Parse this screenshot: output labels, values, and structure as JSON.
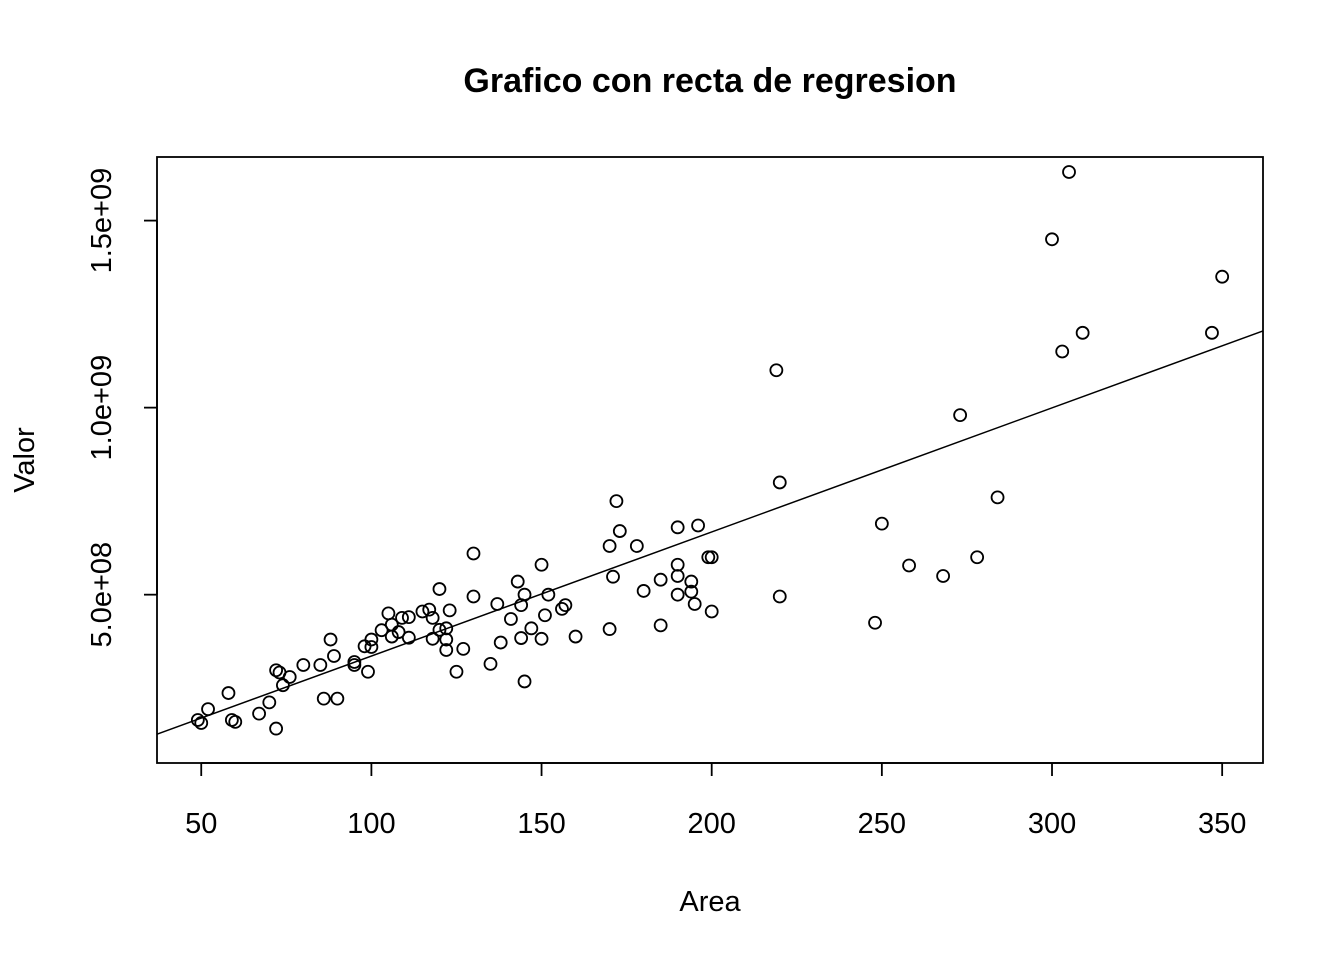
{
  "chart_data": {
    "type": "scatter",
    "title": "Grafico con recta de regresion",
    "xlabel": "Area",
    "ylabel": "Valor",
    "xlim": [
      37,
      362
    ],
    "ylim": [
      50000000.0,
      1670000000.0
    ],
    "x_ticks": [
      50,
      100,
      150,
      200,
      250,
      300,
      350
    ],
    "x_tick_labels": [
      "50",
      "100",
      "150",
      "200",
      "250",
      "300",
      "350"
    ],
    "y_ticks": [
      500000000,
      1000000000,
      1500000000
    ],
    "y_tick_labels": [
      "5.0e+08",
      "1.0e+09",
      "1.5e+09"
    ],
    "grid": false,
    "regression_line": {
      "x": [
        37,
        362
      ],
      "y": [
        127000000.0,
        1205000000.0
      ]
    },
    "series": [
      {
        "points": [
          [
            49,
            165000000.0
          ],
          [
            50,
            157000000.0
          ],
          [
            52,
            194000000.0
          ],
          [
            58,
            237000000.0
          ],
          [
            59,
            165000000.0
          ],
          [
            60,
            160000000.0
          ],
          [
            67,
            182000000.0
          ],
          [
            70,
            212000000.0
          ],
          [
            72,
            298000000.0
          ],
          [
            72,
            142000000.0
          ],
          [
            73,
            292000000.0
          ],
          [
            74,
            258000000.0
          ],
          [
            76,
            280000000.0
          ],
          [
            80,
            312000000.0
          ],
          [
            85,
            312000000.0
          ],
          [
            86,
            222000000.0
          ],
          [
            88,
            380000000.0
          ],
          [
            89,
            336000000.0
          ],
          [
            90,
            222000000.0
          ],
          [
            95,
            320000000.0
          ],
          [
            95,
            312000000.0
          ],
          [
            98,
            362000000.0
          ],
          [
            99,
            294000000.0
          ],
          [
            100,
            380000000.0
          ],
          [
            100,
            360000000.0
          ],
          [
            103,
            405000000.0
          ],
          [
            105,
            450000000.0
          ],
          [
            106,
            420000000.0
          ],
          [
            106,
            388000000.0
          ],
          [
            108,
            400000000.0
          ],
          [
            109,
            438000000.0
          ],
          [
            111,
            440000000.0
          ],
          [
            111,
            385000000.0
          ],
          [
            115,
            455000000.0
          ],
          [
            117,
            460000000.0
          ],
          [
            118,
            438000000.0
          ],
          [
            118,
            382000000.0
          ],
          [
            120,
            515000000.0
          ],
          [
            120,
            406000000.0
          ],
          [
            122,
            410000000.0
          ],
          [
            122,
            380000000.0
          ],
          [
            122,
            352000000.0
          ],
          [
            123,
            458000000.0
          ],
          [
            125,
            294000000.0
          ],
          [
            127,
            355000000.0
          ],
          [
            130,
            610000000.0
          ],
          [
            130,
            495000000.0
          ],
          [
            135,
            315000000.0
          ],
          [
            137,
            475000000.0
          ],
          [
            138,
            372000000.0
          ],
          [
            141,
            435000000.0
          ],
          [
            143,
            535000000.0
          ],
          [
            144,
            472000000.0
          ],
          [
            144,
            384000000.0
          ],
          [
            145,
            500000000.0
          ],
          [
            145,
            268000000.0
          ],
          [
            147,
            410000000.0
          ],
          [
            150,
            580000000.0
          ],
          [
            150,
            382000000.0
          ],
          [
            151,
            445000000.0
          ],
          [
            152,
            500000000.0
          ],
          [
            156,
            462000000.0
          ],
          [
            157,
            472000000.0
          ],
          [
            160,
            388000000.0
          ],
          [
            170,
            630000000.0
          ],
          [
            170,
            408000000.0
          ],
          [
            171,
            548000000.0
          ],
          [
            172,
            750000000.0
          ],
          [
            173,
            670000000.0
          ],
          [
            178,
            630000000.0
          ],
          [
            180,
            510000000.0
          ],
          [
            185,
            540000000.0
          ],
          [
            185,
            418000000.0
          ],
          [
            190,
            680000000.0
          ],
          [
            190,
            580000000.0
          ],
          [
            190,
            550000000.0
          ],
          [
            190,
            500000000.0
          ],
          [
            194,
            535000000.0
          ],
          [
            194,
            508000000.0
          ],
          [
            195,
            475000000.0
          ],
          [
            196,
            685000000.0
          ],
          [
            199,
            600000000.0
          ],
          [
            200,
            600000000.0
          ],
          [
            200,
            455000000.0
          ],
          [
            219,
            1100000000.0
          ],
          [
            220,
            800000000.0
          ],
          [
            220,
            495000000.0
          ],
          [
            248,
            425000000.0
          ],
          [
            250,
            690000000.0
          ],
          [
            258,
            578000000.0
          ],
          [
            268,
            550000000.0
          ],
          [
            273,
            980000000.0
          ],
          [
            278,
            600000000.0
          ],
          [
            284,
            760000000.0
          ],
          [
            300,
            1450000000.0
          ],
          [
            303,
            1150000000.0
          ],
          [
            305,
            1630000000.0
          ],
          [
            309,
            1200000000.0
          ],
          [
            347,
            1200000000.0
          ],
          [
            350,
            1350000000.0
          ]
        ]
      }
    ]
  }
}
